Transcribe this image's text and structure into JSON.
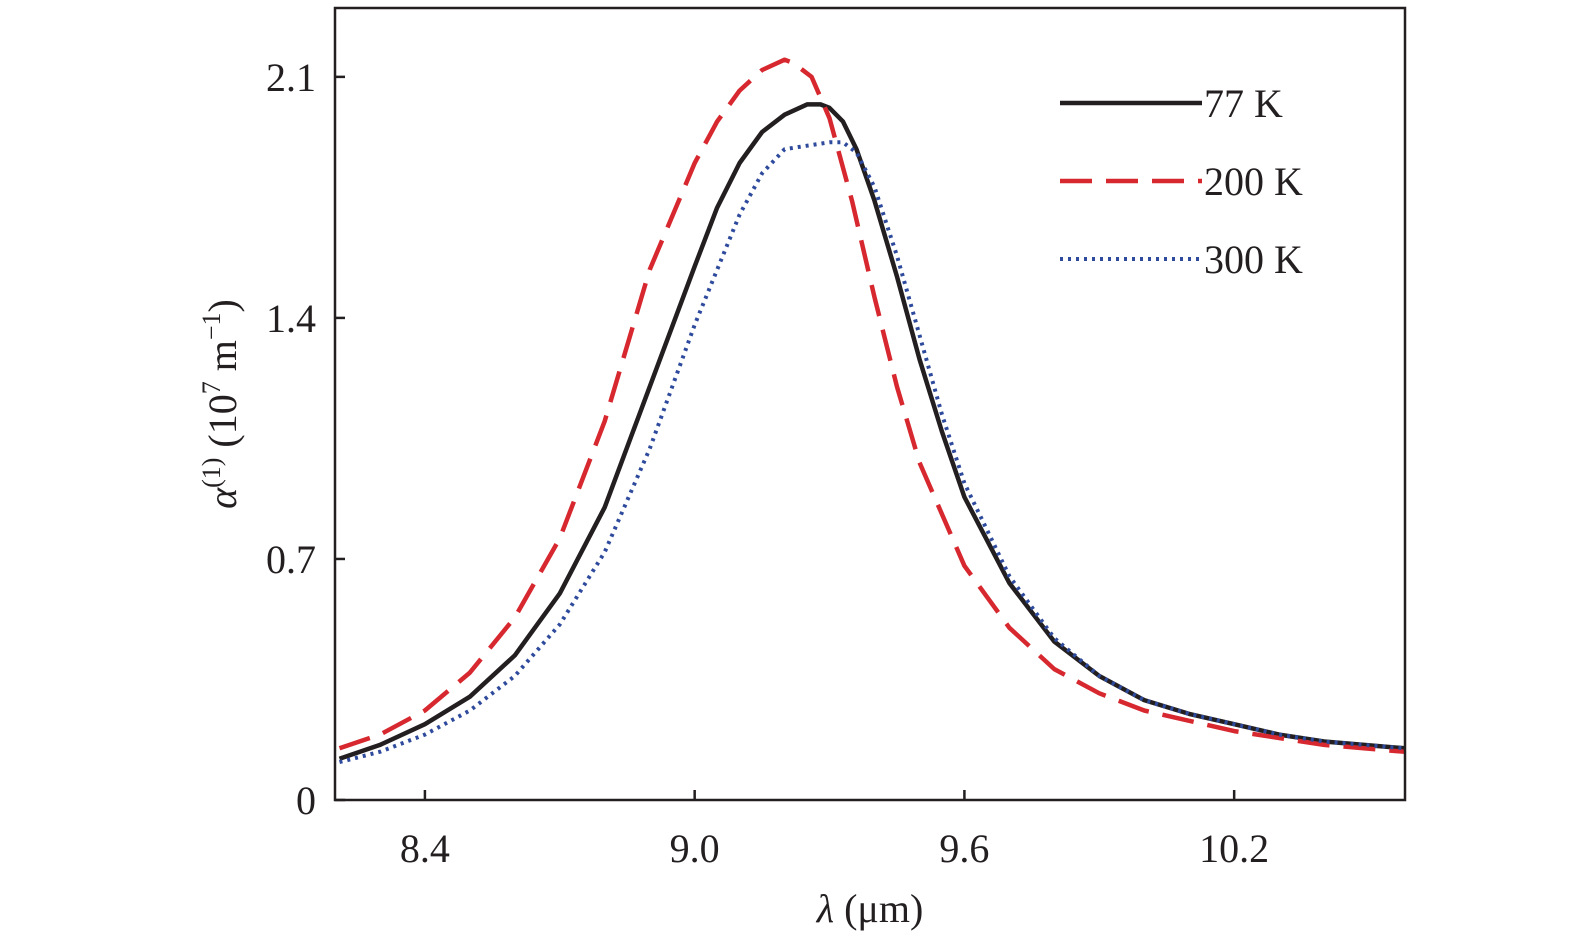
{
  "chart_data": {
    "type": "line",
    "title": "",
    "xlabel": {
      "symbol": "λ",
      "unit": " (μm)"
    },
    "ylabel": {
      "symbol": "α",
      "superscript": "(1)",
      "unit_prefix": " (10",
      "unit_exp": "7",
      "unit_mid": " m",
      "unit_exp2": "−1",
      "unit_suffix": ")"
    },
    "xlim": [
      8.2,
      10.58
    ],
    "ylim": [
      0,
      2.3
    ],
    "xticks": [
      8.4,
      9.0,
      9.6,
      10.2
    ],
    "xtick_labels": [
      "8.4",
      "9.0",
      "9.6",
      "10.2"
    ],
    "yticks": [
      0,
      0.7,
      1.4,
      2.1
    ],
    "ytick_labels": [
      "0",
      "0.7",
      "1.4",
      "2.1"
    ],
    "grid": false,
    "legend_position": "top-right",
    "series": [
      {
        "name": "77 K",
        "color": "#231f20",
        "style": "solid",
        "x": [
          8.21,
          8.3,
          8.4,
          8.5,
          8.6,
          8.7,
          8.8,
          8.9,
          9.0,
          9.05,
          9.1,
          9.15,
          9.2,
          9.25,
          9.28,
          9.3,
          9.33,
          9.36,
          9.4,
          9.45,
          9.5,
          9.55,
          9.6,
          9.7,
          9.8,
          9.9,
          10.0,
          10.1,
          10.2,
          10.3,
          10.4,
          10.58
        ],
        "y": [
          0.12,
          0.16,
          0.22,
          0.3,
          0.42,
          0.6,
          0.85,
          1.2,
          1.55,
          1.72,
          1.85,
          1.94,
          1.99,
          2.02,
          2.02,
          2.01,
          1.97,
          1.89,
          1.74,
          1.52,
          1.28,
          1.07,
          0.88,
          0.63,
          0.46,
          0.36,
          0.29,
          0.25,
          0.22,
          0.19,
          0.17,
          0.15
        ]
      },
      {
        "name": "200 K",
        "color": "#d7282f",
        "style": "dashed",
        "x": [
          8.21,
          8.3,
          8.4,
          8.5,
          8.6,
          8.7,
          8.8,
          8.9,
          9.0,
          9.05,
          9.1,
          9.15,
          9.2,
          9.22,
          9.26,
          9.3,
          9.35,
          9.4,
          9.45,
          9.5,
          9.6,
          9.7,
          9.8,
          9.9,
          10.0,
          10.1,
          10.2,
          10.3,
          10.4,
          10.58
        ],
        "y": [
          0.15,
          0.19,
          0.26,
          0.37,
          0.53,
          0.76,
          1.1,
          1.54,
          1.85,
          1.97,
          2.06,
          2.12,
          2.15,
          2.14,
          2.1,
          1.98,
          1.74,
          1.46,
          1.2,
          0.98,
          0.68,
          0.5,
          0.38,
          0.31,
          0.26,
          0.23,
          0.2,
          0.18,
          0.16,
          0.14
        ]
      },
      {
        "name": "300 K",
        "color": "#2e4a9c",
        "style": "dotted",
        "x": [
          8.21,
          8.3,
          8.4,
          8.5,
          8.6,
          8.7,
          8.8,
          8.9,
          9.0,
          9.1,
          9.15,
          9.2,
          9.25,
          9.3,
          9.33,
          9.36,
          9.4,
          9.45,
          9.5,
          9.55,
          9.6,
          9.7,
          9.8,
          9.9,
          10.0,
          10.1,
          10.2,
          10.3,
          10.4,
          10.58
        ],
        "y": [
          0.11,
          0.14,
          0.19,
          0.26,
          0.36,
          0.51,
          0.72,
          1.02,
          1.38,
          1.7,
          1.82,
          1.89,
          1.9,
          1.91,
          1.91,
          1.88,
          1.78,
          1.58,
          1.35,
          1.12,
          0.92,
          0.65,
          0.47,
          0.36,
          0.29,
          0.25,
          0.22,
          0.19,
          0.17,
          0.15
        ]
      }
    ]
  }
}
